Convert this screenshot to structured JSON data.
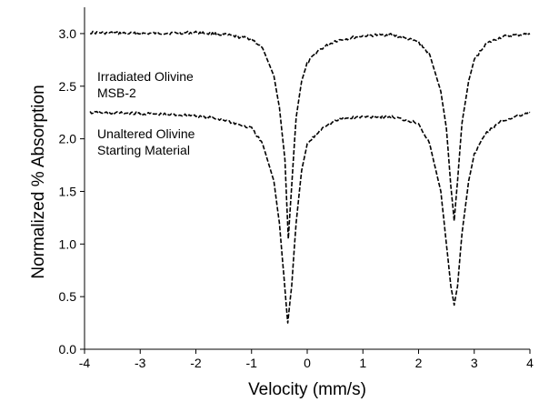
{
  "chart_data": {
    "type": "line",
    "title": "",
    "xlabel": "Velocity (mm/s)",
    "ylabel": "Normalized % Absorption",
    "xlim": [
      -4,
      4
    ],
    "ylim": [
      0,
      3.25
    ],
    "grid": false,
    "x_ticks": [
      -4,
      -3,
      -2,
      -1,
      0,
      1,
      2,
      3,
      4
    ],
    "x_tick_labels": [
      "-4",
      "-3",
      "-2",
      "-1",
      "0",
      "1",
      "2",
      "3",
      "4"
    ],
    "y_ticks": [
      0,
      0.5,
      1.0,
      1.5,
      2.0,
      2.5,
      3.0
    ],
    "y_tick_labels": [
      "0.0",
      "0.5",
      "1.0",
      "1.5",
      "2.0",
      "2.5",
      "3.0"
    ],
    "annotations": [
      {
        "lines": [
          "Irradiated Olivine",
          "MSB-2"
        ]
      },
      {
        "lines": [
          "Unaltered Olivine",
          "Starting Material"
        ]
      }
    ],
    "series": [
      {
        "points": [
          [
            -3.9,
            3.01
          ],
          [
            -3.0,
            3.0
          ],
          [
            -2.0,
            3.01
          ],
          [
            -1.5,
            2.99
          ],
          [
            -1.0,
            2.95
          ],
          [
            -0.8,
            2.86
          ],
          [
            -0.6,
            2.6
          ],
          [
            -0.5,
            2.3
          ],
          [
            -0.4,
            1.8
          ],
          [
            -0.34,
            1.05
          ],
          [
            -0.28,
            1.55
          ],
          [
            -0.2,
            2.2
          ],
          [
            -0.1,
            2.55
          ],
          [
            0.0,
            2.72
          ],
          [
            0.2,
            2.84
          ],
          [
            0.5,
            2.93
          ],
          [
            1.0,
            2.98
          ],
          [
            1.5,
            2.99
          ],
          [
            2.0,
            2.92
          ],
          [
            2.2,
            2.8
          ],
          [
            2.4,
            2.45
          ],
          [
            2.5,
            2.1
          ],
          [
            2.58,
            1.55
          ],
          [
            2.64,
            1.22
          ],
          [
            2.7,
            1.6
          ],
          [
            2.78,
            2.15
          ],
          [
            2.9,
            2.55
          ],
          [
            3.0,
            2.75
          ],
          [
            3.2,
            2.9
          ],
          [
            3.5,
            2.97
          ],
          [
            4.0,
            3.0
          ]
        ]
      },
      {
        "points": [
          [
            -3.9,
            2.25
          ],
          [
            -3.0,
            2.24
          ],
          [
            -2.0,
            2.22
          ],
          [
            -1.5,
            2.18
          ],
          [
            -1.0,
            2.1
          ],
          [
            -0.8,
            1.95
          ],
          [
            -0.6,
            1.6
          ],
          [
            -0.5,
            1.2
          ],
          [
            -0.42,
            0.7
          ],
          [
            -0.35,
            0.25
          ],
          [
            -0.28,
            0.6
          ],
          [
            -0.2,
            1.2
          ],
          [
            -0.1,
            1.7
          ],
          [
            0.0,
            1.95
          ],
          [
            0.3,
            2.12
          ],
          [
            0.6,
            2.19
          ],
          [
            1.0,
            2.21
          ],
          [
            1.5,
            2.21
          ],
          [
            2.0,
            2.15
          ],
          [
            2.2,
            1.95
          ],
          [
            2.4,
            1.5
          ],
          [
            2.5,
            1.0
          ],
          [
            2.58,
            0.6
          ],
          [
            2.64,
            0.42
          ],
          [
            2.7,
            0.6
          ],
          [
            2.78,
            1.1
          ],
          [
            2.9,
            1.6
          ],
          [
            3.0,
            1.85
          ],
          [
            3.2,
            2.05
          ],
          [
            3.5,
            2.17
          ],
          [
            4.0,
            2.25
          ]
        ]
      }
    ]
  }
}
